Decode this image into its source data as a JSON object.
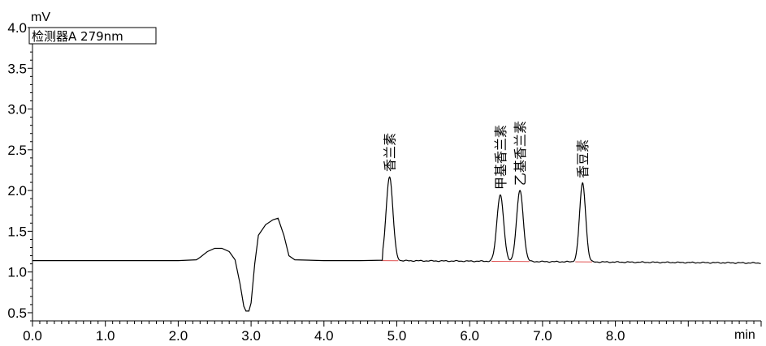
{
  "chart_data": {
    "type": "line",
    "detector_label": "检测器A 279nm",
    "y_unit": "mV",
    "x_unit": "min",
    "xlim": [
      0,
      10
    ],
    "ylim": [
      0.4,
      4.0
    ],
    "x_major_ticks": [
      "0.0",
      "1.0",
      "2.0",
      "3.0",
      "4.0",
      "5.0",
      "6.0",
      "7.0",
      "8.0"
    ],
    "y_major_ticks": [
      "0.5",
      "1.0",
      "1.5",
      "2.0",
      "2.5",
      "3.0",
      "3.5",
      "4.0"
    ],
    "baseline_mV": 1.14,
    "baseline_drift_end_mV": 1.11,
    "series": [
      {
        "points": [
          [
            0.0,
            1.14
          ],
          [
            0.5,
            1.14
          ],
          [
            1.0,
            1.14
          ],
          [
            1.5,
            1.14
          ],
          [
            2.0,
            1.14
          ],
          [
            2.25,
            1.15
          ],
          [
            2.3,
            1.18
          ],
          [
            2.4,
            1.25
          ],
          [
            2.5,
            1.29
          ],
          [
            2.6,
            1.29
          ],
          [
            2.7,
            1.25
          ],
          [
            2.78,
            1.15
          ],
          [
            2.85,
            0.85
          ],
          [
            2.9,
            0.58
          ],
          [
            2.93,
            0.52
          ],
          [
            2.97,
            0.52
          ],
          [
            3.0,
            0.62
          ],
          [
            3.05,
            1.1
          ],
          [
            3.1,
            1.45
          ],
          [
            3.2,
            1.58
          ],
          [
            3.3,
            1.64
          ],
          [
            3.37,
            1.66
          ],
          [
            3.45,
            1.45
          ],
          [
            3.52,
            1.2
          ],
          [
            3.6,
            1.15
          ],
          [
            4.0,
            1.14
          ],
          [
            4.5,
            1.14
          ],
          [
            4.8,
            1.145
          ]
        ]
      }
    ],
    "peaks": [
      {
        "label": "香兰素",
        "rt": 4.9,
        "height": 2.17,
        "width": 0.055
      },
      {
        "label": "甲基香兰素",
        "rt": 6.42,
        "height": 1.95,
        "width": 0.055
      },
      {
        "label": "乙基香兰素",
        "rt": 6.69,
        "height": 2.0,
        "width": 0.055
      },
      {
        "label": "香豆素",
        "rt": 7.55,
        "height": 2.09,
        "width": 0.05
      }
    ],
    "colors": {
      "trace": "#000000",
      "baseline": "#e05050",
      "axis": "#000000"
    },
    "grid": false
  }
}
